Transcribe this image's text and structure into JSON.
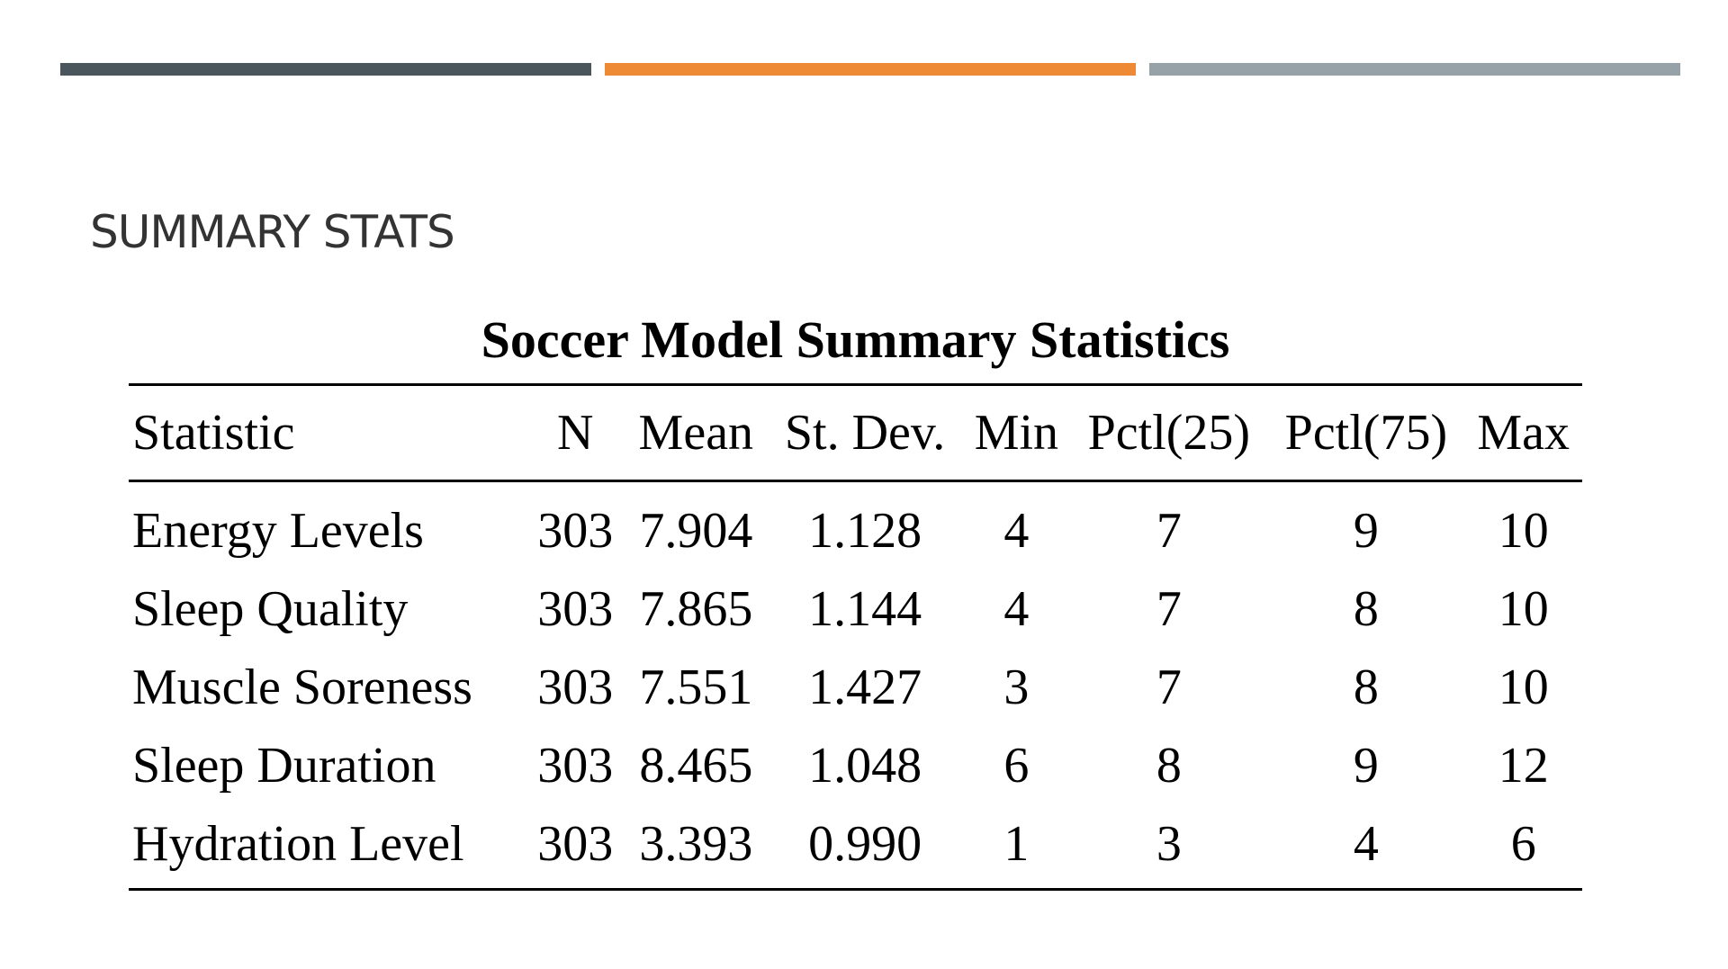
{
  "theme": {
    "bar_colors": [
      "#4a555c",
      "#ee8a35",
      "#97a1a8"
    ]
  },
  "slide": {
    "heading": "SUMMARY STATS"
  },
  "table": {
    "title": "Soccer Model Summary Statistics",
    "headers": [
      "Statistic",
      "N",
      "Mean",
      "St. Dev.",
      "Min",
      "Pctl(25)",
      "Pctl(75)",
      "Max"
    ],
    "rows": [
      [
        "Energy Levels",
        "303",
        "7.904",
        "1.128",
        "4",
        "7",
        "9",
        "10"
      ],
      [
        "Sleep Quality",
        "303",
        "7.865",
        "1.144",
        "4",
        "7",
        "8",
        "10"
      ],
      [
        "Muscle Soreness",
        "303",
        "7.551",
        "1.427",
        "3",
        "7",
        "8",
        "10"
      ],
      [
        "Sleep Duration",
        "303",
        "8.465",
        "1.048",
        "6",
        "8",
        "9",
        "12"
      ],
      [
        "Hydration Level",
        "303",
        "3.393",
        "0.990",
        "1",
        "3",
        "4",
        "6"
      ]
    ]
  }
}
